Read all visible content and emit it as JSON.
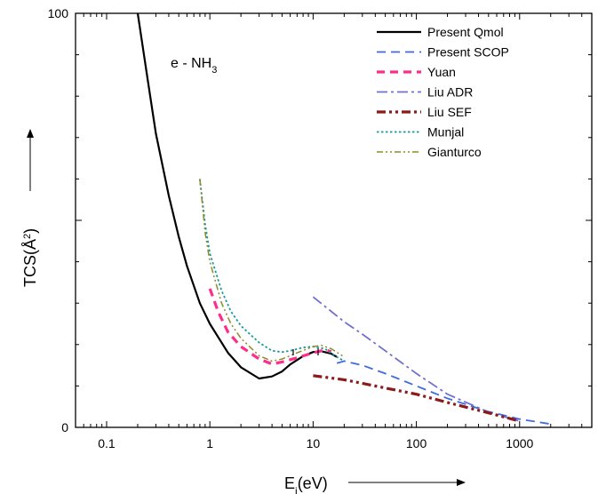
{
  "chart_data": {
    "type": "line",
    "annotation": {
      "base": "e - NH",
      "sub": "3"
    },
    "xlabel": {
      "main": "E",
      "sub": "i",
      "rest": "(eV)"
    },
    "ylabel": {
      "main": "TCS(",
      "mid": "Å",
      "sup": "2",
      "rest": ")"
    },
    "x_scale": "log",
    "xlim": [
      0.05,
      5000
    ],
    "ylim": [
      0,
      100
    ],
    "x_ticks": [
      {
        "value": 0.1,
        "label": "0.1"
      },
      {
        "value": 1,
        "label": "1"
      },
      {
        "value": 10,
        "label": "10"
      },
      {
        "value": 100,
        "label": "100"
      },
      {
        "value": 1000,
        "label": "1000"
      }
    ],
    "y_ticks": [
      {
        "value": 0,
        "label": "0"
      },
      {
        "value": 100,
        "label": "100"
      }
    ],
    "legend_position": "top-right",
    "grid": false,
    "series": [
      {
        "name": "Present Qmol",
        "color": "#000000",
        "dash": "solid",
        "points": [
          [
            0.2,
            100
          ],
          [
            0.25,
            84
          ],
          [
            0.3,
            71
          ],
          [
            0.4,
            56
          ],
          [
            0.5,
            46
          ],
          [
            0.6,
            39
          ],
          [
            0.8,
            30
          ],
          [
            1,
            25
          ],
          [
            1.5,
            18
          ],
          [
            2,
            14.5
          ],
          [
            3,
            11.8
          ],
          [
            4,
            12.3
          ],
          [
            5,
            13.5
          ],
          [
            6,
            15.2
          ],
          [
            8,
            17.2
          ],
          [
            10,
            18.2
          ],
          [
            12,
            18.4
          ],
          [
            15,
            17.8
          ],
          [
            17,
            17
          ]
        ]
      },
      {
        "name": "Present SCOP",
        "color": "#4169E1",
        "dash": "dashed",
        "points": [
          [
            17,
            15.5
          ],
          [
            20,
            16
          ],
          [
            30,
            15
          ],
          [
            50,
            13
          ],
          [
            100,
            10
          ],
          [
            200,
            7
          ],
          [
            500,
            3.8
          ],
          [
            1000,
            2
          ],
          [
            2000,
            0.8
          ]
        ]
      },
      {
        "name": "Yuan",
        "color": "#FF2D8A",
        "dash": "dashed-thick",
        "points": [
          [
            1,
            33.5
          ],
          [
            1.2,
            28
          ],
          [
            1.5,
            23
          ],
          [
            2,
            19.5
          ],
          [
            3,
            16.5
          ],
          [
            4,
            15.3
          ],
          [
            5,
            15.8
          ],
          [
            7,
            16.8
          ],
          [
            10,
            18
          ],
          [
            13,
            18.7
          ],
          [
            15,
            18.3
          ]
        ]
      },
      {
        "name": "Liu ADR",
        "color": "#7070D0",
        "dash": "dashdot",
        "points": [
          [
            10,
            31.5
          ],
          [
            15,
            28
          ],
          [
            20,
            25.5
          ],
          [
            30,
            22.5
          ],
          [
            50,
            18.5
          ],
          [
            100,
            13
          ],
          [
            200,
            8
          ],
          [
            500,
            3.7
          ],
          [
            1000,
            1.5
          ]
        ]
      },
      {
        "name": "Liu SEF",
        "color": "#8B1A1A",
        "dash": "dashdotdot-thick",
        "points": [
          [
            10,
            12.5
          ],
          [
            20,
            11.5
          ],
          [
            50,
            9.5
          ],
          [
            100,
            8
          ],
          [
            200,
            6
          ],
          [
            500,
            3.5
          ],
          [
            1000,
            1.5
          ]
        ]
      },
      {
        "name": "Munjal",
        "color": "#1A9A9A",
        "dash": "dotted",
        "points": [
          [
            0.8,
            60
          ],
          [
            0.9,
            49
          ],
          [
            1,
            42
          ],
          [
            1.3,
            33
          ],
          [
            1.6,
            28
          ],
          [
            2,
            24.5
          ],
          [
            3,
            20.5
          ],
          [
            4,
            18.5
          ],
          [
            5,
            18.2
          ],
          [
            6,
            18.5
          ],
          [
            8,
            19.3
          ],
          [
            10,
            19.5
          ],
          [
            13,
            19
          ],
          [
            17,
            17
          ],
          [
            20,
            16
          ]
        ]
      },
      {
        "name": "Gianturco",
        "color": "#8B8B2A",
        "dash": "dashdotdot",
        "points": [
          [
            0.8,
            60
          ],
          [
            0.9,
            47
          ],
          [
            1,
            40
          ],
          [
            1.3,
            30
          ],
          [
            1.6,
            25
          ],
          [
            2,
            21.5
          ],
          [
            3,
            17.3
          ],
          [
            4,
            16
          ],
          [
            5,
            16.5
          ],
          [
            7,
            18
          ],
          [
            10,
            19.5
          ],
          [
            12,
            19.8
          ],
          [
            15,
            19
          ],
          [
            20,
            17
          ]
        ]
      }
    ]
  }
}
